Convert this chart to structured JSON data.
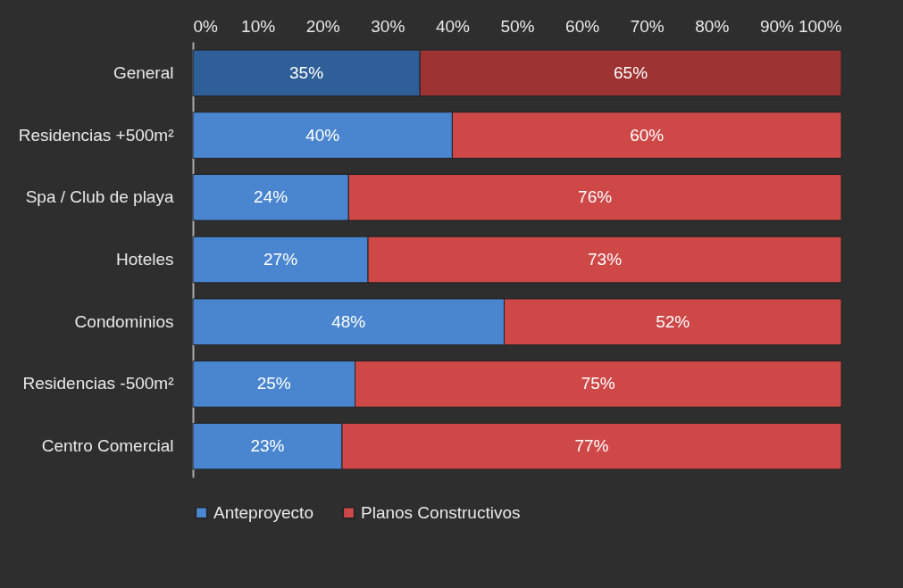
{
  "chart_data": {
    "type": "bar",
    "orientation": "horizontal",
    "stacked": true,
    "categories": [
      "General",
      "Residencias +500m²",
      "Spa / Club de playa",
      "Hoteles",
      "Condominios",
      "Residencias -500m²",
      "Centro Comercial"
    ],
    "series": [
      {
        "name": "Anteproyecto",
        "color": "#4a86d0",
        "colors": [
          "#2f5f99",
          "#4a86d0",
          "#4a86d0",
          "#4a86d0",
          "#4a86d0",
          "#4a86d0",
          "#4a86d0"
        ],
        "values": [
          35,
          40,
          24,
          27,
          48,
          25,
          23
        ],
        "value_labels": [
          "35%",
          "40%",
          "24%",
          "27%",
          "48%",
          "25%",
          "23%"
        ]
      },
      {
        "name": "Planos Constructivos",
        "color": "#cf4848",
        "colors": [
          "#9e3333",
          "#cf4848",
          "#cf4848",
          "#cf4848",
          "#cf4848",
          "#cf4848",
          "#cf4848"
        ],
        "values": [
          65,
          60,
          76,
          73,
          52,
          75,
          77
        ],
        "value_labels": [
          "65%",
          "60%",
          "76%",
          "73%",
          "52%",
          "75%",
          "77%"
        ]
      }
    ],
    "xlim": [
      0,
      100
    ],
    "xticks": [
      {
        "value": 0,
        "label": "0%"
      },
      {
        "value": 10,
        "label": "10%"
      },
      {
        "value": 20,
        "label": "20%"
      },
      {
        "value": 30,
        "label": "30%"
      },
      {
        "value": 40,
        "label": "40%"
      },
      {
        "value": 50,
        "label": "50%"
      },
      {
        "value": 60,
        "label": "60%"
      },
      {
        "value": 70,
        "label": "70%"
      },
      {
        "value": 80,
        "label": "80%"
      },
      {
        "value": 90,
        "label": "90%"
      },
      {
        "value": 100,
        "label": "100%"
      }
    ],
    "legend": "bottom"
  }
}
